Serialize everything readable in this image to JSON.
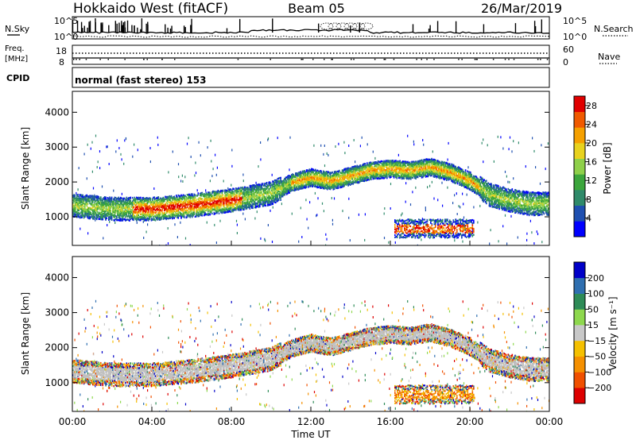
{
  "header": {
    "station": "Hokkaido West (fitACF)",
    "beam": "Beam 05",
    "date": "26/Mar/2019"
  },
  "noise_panel": {
    "left_label": "N.Sky",
    "right_label": "N.Search",
    "left_ticks": [
      "10^5",
      "10^0"
    ],
    "right_ticks": [
      "10^5",
      "10^0"
    ]
  },
  "freq_panel": {
    "left_label_line1": "Freq.",
    "left_label_line2": "[MHz]",
    "right_label": "Nave",
    "left_ticks": [
      "18",
      "8"
    ],
    "right_ticks": [
      "60",
      "0"
    ]
  },
  "cpid_panel": {
    "label": "CPID",
    "mode": "normal (fast stereo) 153"
  },
  "colors": {
    "power": [
      "#0000ff",
      "#1e4fb0",
      "#2f8a6a",
      "#3ca63c",
      "#8fd04a",
      "#e8d21e",
      "#f5a000",
      "#f05a00",
      "#e00000"
    ],
    "velocity": [
      "#0000c8",
      "#2f6fb0",
      "#2e8b57",
      "#8ed84e",
      "#c8c8c8",
      "#f5c000",
      "#f59000",
      "#f05000",
      "#dd0000"
    ],
    "ground_scatter": "#c0c0c0"
  },
  "chart_data": [
    {
      "type": "heatmap",
      "name": "power",
      "xlabel": "",
      "ylabel": "Slant Range [km]",
      "xlim": [
        0,
        24
      ],
      "ylim": [
        180,
        4600
      ],
      "yticks": [
        1000,
        2000,
        3000,
        4000
      ],
      "colorbar_label": "Power [dB]",
      "colorbar_ticks": [
        "4",
        "8",
        "12",
        "16",
        "20",
        "24",
        "28"
      ],
      "colorbar_range": [
        0,
        30
      ],
      "scatter_band_centre_km": [
        [
          0,
          1350
        ],
        [
          2,
          1250
        ],
        [
          4,
          1250
        ],
        [
          6,
          1350
        ],
        [
          8,
          1500
        ],
        [
          10,
          1700
        ],
        [
          11,
          2000
        ],
        [
          12,
          2150
        ],
        [
          13,
          2050
        ],
        [
          14,
          2200
        ],
        [
          15,
          2350
        ],
        [
          16,
          2400
        ],
        [
          17,
          2350
        ],
        [
          18,
          2450
        ],
        [
          19,
          2300
        ],
        [
          20,
          2050
        ],
        [
          21,
          1650
        ],
        [
          22,
          1500
        ],
        [
          23,
          1400
        ],
        [
          24,
          1400
        ]
      ],
      "near_range_echo": {
        "time_h": [
          16.2,
          20.2
        ],
        "range_km": [
          420,
          950
        ]
      }
    },
    {
      "type": "heatmap",
      "name": "velocity",
      "xlabel": "Time UT",
      "ylabel": "Slant Range [km]",
      "xlim": [
        0,
        24
      ],
      "ylim": [
        180,
        4600
      ],
      "xticks": [
        "00:00",
        "04:00",
        "08:00",
        "12:00",
        "16:00",
        "20:00",
        "00:00"
      ],
      "yticks": [
        1000,
        2000,
        3000,
        4000
      ],
      "colorbar_label": "Velocity [m s⁻¹]",
      "colorbar_ticks": [
        "200",
        "100",
        "50",
        "15",
        "−15",
        "−50",
        "−100",
        "−200"
      ]
    }
  ]
}
